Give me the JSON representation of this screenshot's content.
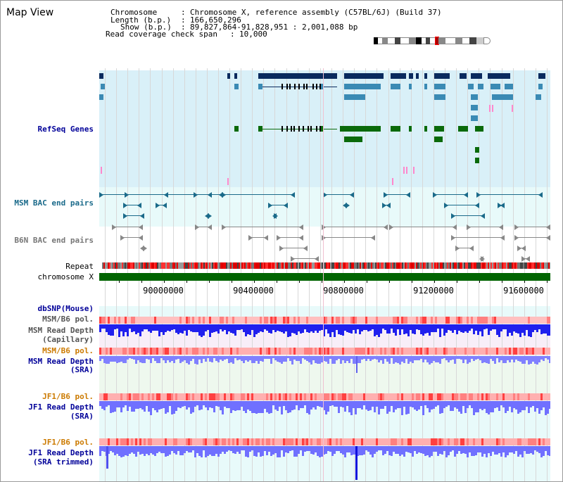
{
  "title": "Map View",
  "info": {
    "chromosome_label": "Chromosome",
    "chromosome_value": "Chromosome X, reference assembly (C57BL/6J) (Build 37)",
    "length_label": "Length (b.p.)",
    "length_value": "166,650,296",
    "show_label": "Show (b.p.)",
    "show_value": "89,827,864-91,828,951 : 2,001,088 bp",
    "read_cov_label": "Read coverage check span",
    "read_cov_value": "10,000"
  },
  "tracks": {
    "refseq": "RefSeq Genes",
    "msm_bac": "MSM BAC end pairs",
    "b6n_bac": "B6N BAC end pairs",
    "repeat": "Repeat",
    "chromosome": "chromosome X",
    "dbsnp": "dbSNP(Mouse)",
    "msm_b6_pol_1": "MSM/B6 pol.",
    "msm_read_depth_cap_1": "MSM Read Depth",
    "msm_read_depth_cap_2": "(Capillary)",
    "msm_b6_pol_2": "MSM/B6 pol.",
    "msm_read_depth_sra_1": "MSM Read Depth",
    "msm_read_depth_sra_2": "(SRA)",
    "jf1_b6_pol_1": "JF1/B6 pol.",
    "jf1_read_depth_sra_1": "JF1 Read Depth",
    "jf1_read_depth_sra_2": "(SRA)",
    "jf1_b6_pol_2": "JF1/B6 pol.",
    "jf1_read_depth_trim_1": "JF1 Read Depth",
    "jf1_read_depth_trim_2": "(SRA trimmed)"
  },
  "scale": {
    "labels": [
      "90000000",
      "90400000",
      "90800000",
      "91200000",
      "91600000"
    ]
  },
  "colors": {
    "refseq_bg": "#d9f0f8",
    "msm_bg": "#e8fafa",
    "navy": "#0a2a5e",
    "steel": "#3a8ab4",
    "green": "#0a6a0a",
    "pink": "#ff88cc",
    "teal_line": "#1a6a8a",
    "gray_line": "#888888",
    "label_blue": "#000099",
    "label_teal": "#1a6a8a",
    "label_orange": "#cc7a00",
    "label_gray": "#555555"
  }
}
